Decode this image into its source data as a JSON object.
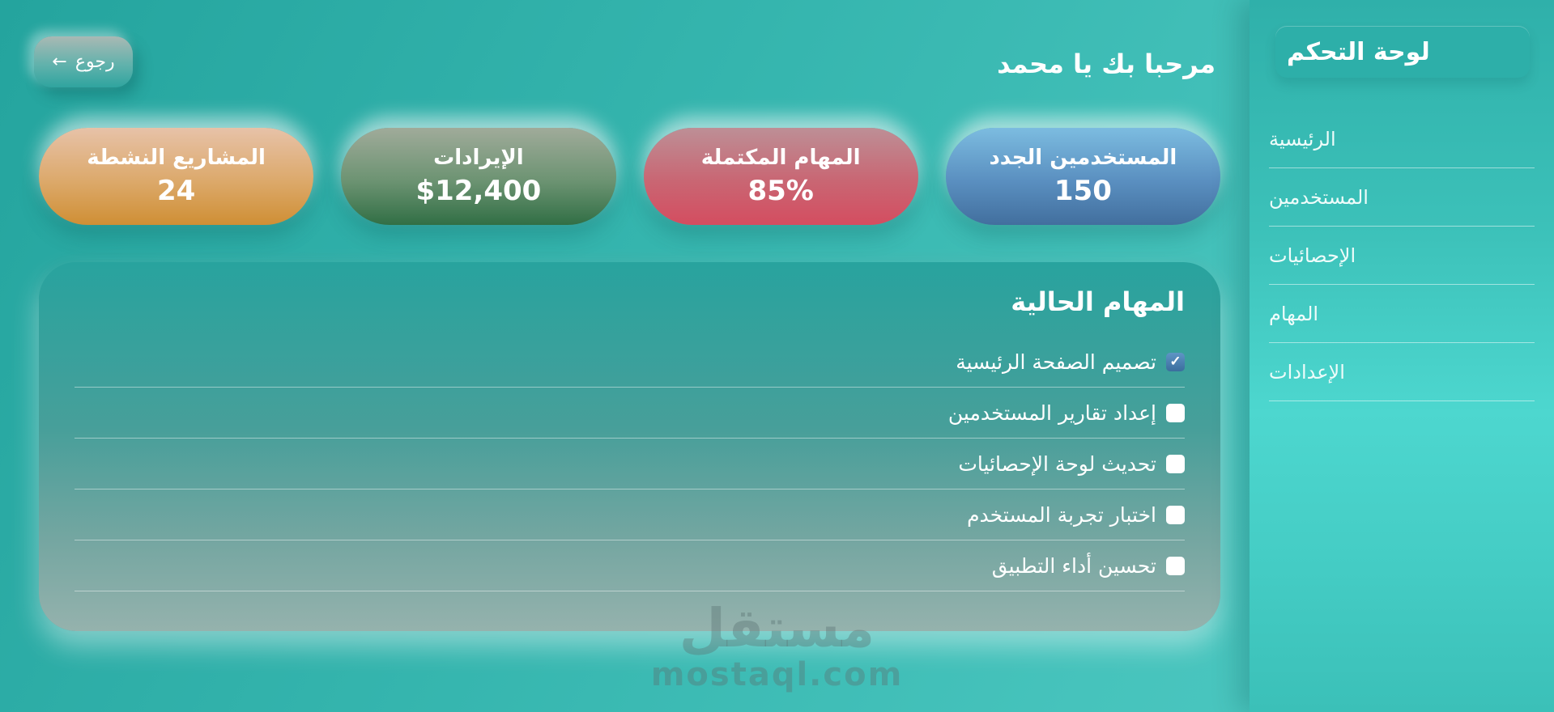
{
  "sidebar": {
    "title": "لوحة التحكم",
    "items": [
      {
        "label": "الرئيسية"
      },
      {
        "label": "المستخدمين"
      },
      {
        "label": "الإحصائيات"
      },
      {
        "label": "المهام"
      },
      {
        "label": "الإعدادات"
      }
    ]
  },
  "header": {
    "back_label": "رجوع",
    "back_arrow": "←",
    "welcome": "مرحبا بك يا محمد"
  },
  "stats": [
    {
      "label": "المستخدمين الجدد",
      "value": "150",
      "color_top": "#7cbce0",
      "color_mid": "#5a8fc0",
      "color_bottom": "#426f9e"
    },
    {
      "label": "المهام المكتملة",
      "value": "85%",
      "color_top": "#bd8f96",
      "color_mid": "#c96673",
      "color_bottom": "#d44d60"
    },
    {
      "label": "الإيرادات",
      "value": "$12,400",
      "color_top": "#a0ab9a",
      "color_mid": "#6c9372",
      "color_bottom": "#316f45"
    },
    {
      "label": "المشاريع النشطة",
      "value": "24",
      "color_top": "#e7c2a8",
      "color_mid": "#dca96b",
      "color_bottom": "#cf8f35"
    }
  ],
  "tasks_panel": {
    "title": "المهام الحالية",
    "tasks": [
      {
        "label": "تصميم الصفحة الرئيسية",
        "checked": true
      },
      {
        "label": "إعداد تقارير المستخدمين",
        "checked": false
      },
      {
        "label": "تحديث لوحة الإحصائيات",
        "checked": false
      },
      {
        "label": "اختبار تجربة المستخدم",
        "checked": false
      },
      {
        "label": "تحسين أداء التطبيق",
        "checked": false
      }
    ]
  },
  "watermark": {
    "arabic": "مستقل",
    "domain": "mostaql.com"
  },
  "colors": {
    "checkbox_checked": "#4074a6",
    "page_teal": "#3ab9b2",
    "sidebar_teal": "#45cfc7",
    "text": "#ffffff"
  }
}
